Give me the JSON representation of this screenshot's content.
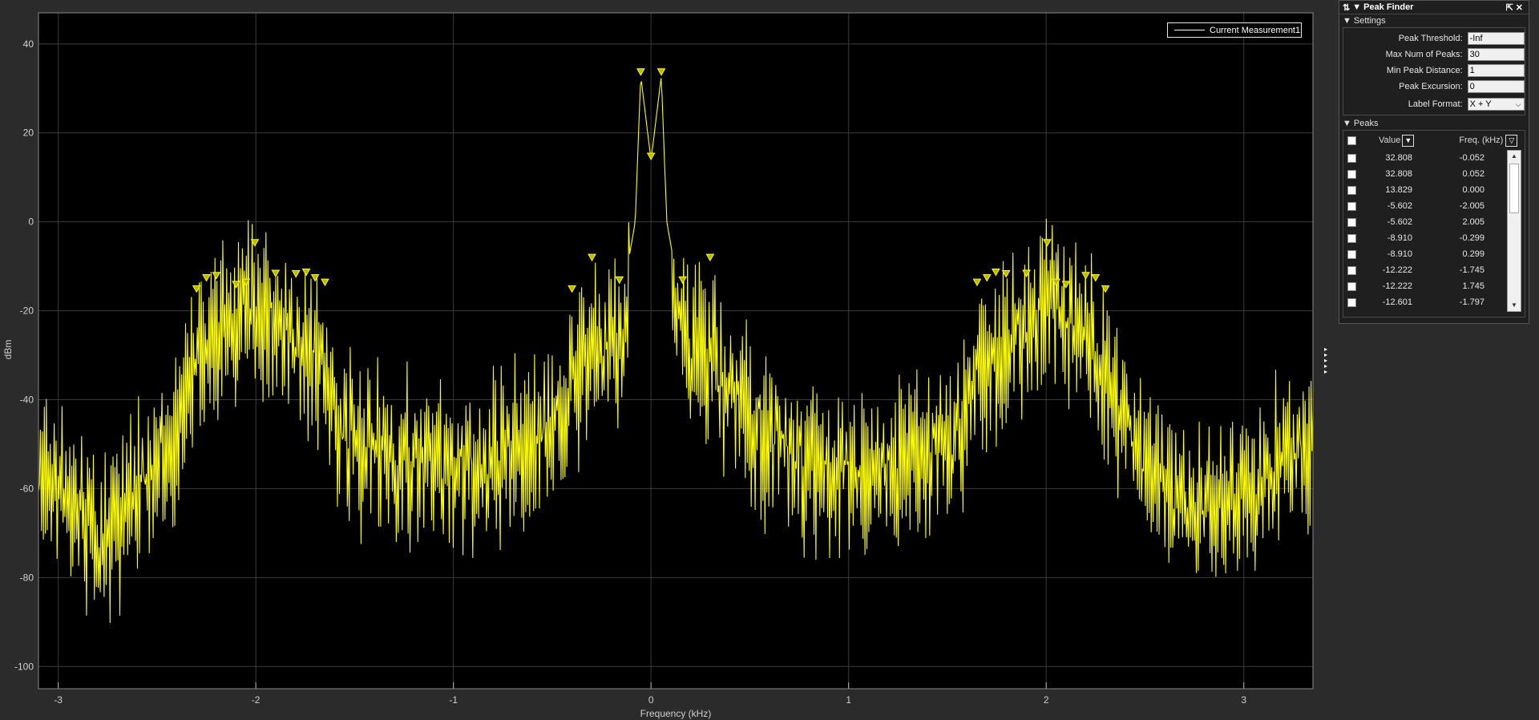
{
  "legend": {
    "label": "Current Measurement1"
  },
  "chart_data": {
    "type": "line",
    "title": "",
    "xlabel": "Frequency (kHz)",
    "ylabel": "dBm",
    "xlim": [
      -3.1,
      3.35
    ],
    "ylim": [
      -105,
      47
    ],
    "xticks": [
      -3,
      -2,
      -1,
      0,
      1,
      2,
      3
    ],
    "yticks": [
      40,
      20,
      0,
      -20,
      -40,
      -60,
      -80,
      -100
    ],
    "grid": true,
    "line_color": "#ffff00",
    "background": "#000000",
    "series": [
      {
        "name": "Current Measurement1"
      }
    ],
    "envelope": [
      [
        -3.1,
        -48
      ],
      [
        -2.8,
        -62
      ],
      [
        -2.5,
        -48
      ],
      [
        -2.35,
        -30
      ],
      [
        -2.25,
        -20
      ],
      [
        -2.0,
        -10
      ],
      [
        -1.8,
        -18
      ],
      [
        -1.65,
        -24
      ],
      [
        -1.55,
        -40
      ],
      [
        -1.2,
        -45
      ],
      [
        -0.9,
        -48
      ],
      [
        -0.6,
        -40
      ],
      [
        -0.45,
        -32
      ],
      [
        -0.3,
        -20
      ],
      [
        -0.15,
        -18
      ],
      [
        -0.08,
        0
      ],
      [
        -0.052,
        32.8
      ],
      [
        0.0,
        13.8
      ],
      [
        0.052,
        32.8
      ],
      [
        0.08,
        0
      ],
      [
        0.15,
        -18
      ],
      [
        0.3,
        -20
      ],
      [
        0.45,
        -32
      ],
      [
        0.6,
        -40
      ],
      [
        0.9,
        -48
      ],
      [
        1.2,
        -45
      ],
      [
        1.55,
        -40
      ],
      [
        1.65,
        -24
      ],
      [
        1.8,
        -18
      ],
      [
        2.0,
        -10
      ],
      [
        2.25,
        -20
      ],
      [
        2.35,
        -30
      ],
      [
        2.5,
        -48
      ],
      [
        2.8,
        -55
      ],
      [
        3.1,
        -48
      ],
      [
        3.35,
        -42
      ]
    ],
    "peaks": [
      {
        "x": -0.052,
        "y": 32.808
      },
      {
        "x": 0.052,
        "y": 32.808
      },
      {
        "x": 0.0,
        "y": 13.829
      },
      {
        "x": -2.005,
        "y": -5.602
      },
      {
        "x": 2.005,
        "y": -5.602
      },
      {
        "x": -0.299,
        "y": -8.91
      },
      {
        "x": 0.299,
        "y": -8.91
      },
      {
        "x": -1.745,
        "y": -12.222
      },
      {
        "x": 1.745,
        "y": -12.222
      },
      {
        "x": -1.797,
        "y": -12.601
      },
      {
        "x": 1.797,
        "y": -12.601
      },
      {
        "x": -2.2,
        "y": -13
      },
      {
        "x": 2.2,
        "y": -13
      },
      {
        "x": -2.25,
        "y": -13.5
      },
      {
        "x": 2.25,
        "y": -13.5
      },
      {
        "x": -1.9,
        "y": -12.5
      },
      {
        "x": 1.9,
        "y": -12.5
      },
      {
        "x": -1.7,
        "y": -13.5
      },
      {
        "x": 1.7,
        "y": -13.5
      },
      {
        "x": -2.05,
        "y": -14.5
      },
      {
        "x": 2.05,
        "y": -14.5
      },
      {
        "x": -2.1,
        "y": -15
      },
      {
        "x": 2.1,
        "y": -15
      },
      {
        "x": -1.65,
        "y": -14.5
      },
      {
        "x": 1.65,
        "y": -14.5
      },
      {
        "x": -2.3,
        "y": -16
      },
      {
        "x": 2.3,
        "y": -16
      },
      {
        "x": -0.16,
        "y": -14
      },
      {
        "x": 0.16,
        "y": -14
      },
      {
        "x": -0.4,
        "y": -16
      }
    ]
  },
  "peak_finder": {
    "title": "Peak Finder",
    "settings_label": "Settings",
    "settings": [
      {
        "label": "Peak Threshold:",
        "value": "-Inf"
      },
      {
        "label": "Max Num of Peaks:",
        "value": "30"
      },
      {
        "label": "Min Peak Distance:",
        "value": "1"
      },
      {
        "label": "Peak Excursion:",
        "value": "0"
      },
      {
        "label": "Label Format:",
        "value": "X + Y"
      }
    ],
    "peaks_label": "Peaks",
    "col_value": "Value",
    "col_freq": "Freq. (kHz)",
    "rows": [
      {
        "value": "32.808",
        "freq": "-0.052"
      },
      {
        "value": "32.808",
        "freq": "0.052"
      },
      {
        "value": "13.829",
        "freq": "0.000"
      },
      {
        "value": "-5.602",
        "freq": "-2.005"
      },
      {
        "value": "-5.602",
        "freq": "2.005"
      },
      {
        "value": "-8.910",
        "freq": "-0.299"
      },
      {
        "value": "-8.910",
        "freq": "0.299"
      },
      {
        "value": "-12.222",
        "freq": "-1.745"
      },
      {
        "value": "-12.222",
        "freq": "1.745"
      },
      {
        "value": "-12.601",
        "freq": "-1.797"
      }
    ]
  }
}
